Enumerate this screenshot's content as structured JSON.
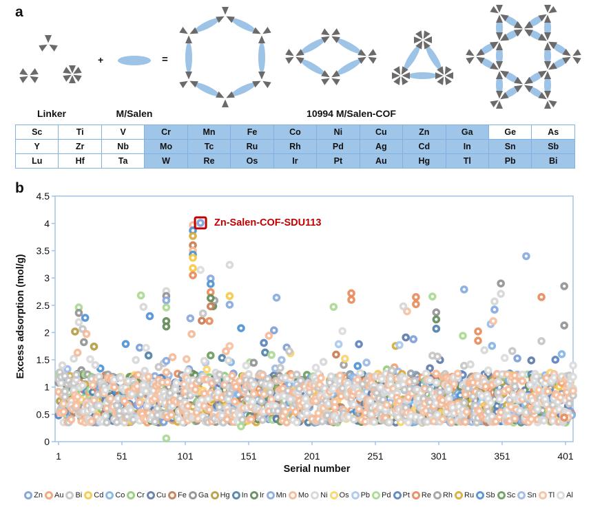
{
  "figure": {
    "panel_a_label": "a",
    "panel_b_label": "b"
  },
  "panel_a": {
    "plus": "+",
    "equals": "=",
    "linker_label": "Linker",
    "msalen_label": "M/Salen",
    "cof_label": "10994 M/Salen-COF",
    "colors": {
      "linker": "#6b6969",
      "salen": "#9dc3e6"
    }
  },
  "element_table": {
    "highlight_color": "#9fc5e8",
    "rows": [
      [
        {
          "el": "Sc",
          "hl": false
        },
        {
          "el": "Ti",
          "hl": false
        },
        {
          "el": "V",
          "hl": false
        },
        {
          "el": "Cr",
          "hl": true
        },
        {
          "el": "Mn",
          "hl": true
        },
        {
          "el": "Fe",
          "hl": true
        },
        {
          "el": "Co",
          "hl": true
        },
        {
          "el": "Ni",
          "hl": true
        },
        {
          "el": "Cu",
          "hl": true
        },
        {
          "el": "Zn",
          "hl": true
        },
        {
          "el": "Ga",
          "hl": true
        },
        {
          "el": "Ge",
          "hl": false
        },
        {
          "el": "As",
          "hl": false
        }
      ],
      [
        {
          "el": "Y",
          "hl": false
        },
        {
          "el": "Zr",
          "hl": false
        },
        {
          "el": "Nb",
          "hl": false
        },
        {
          "el": "Mo",
          "hl": true
        },
        {
          "el": "Tc",
          "hl": true
        },
        {
          "el": "Ru",
          "hl": true
        },
        {
          "el": "Rh",
          "hl": true
        },
        {
          "el": "Pd",
          "hl": true
        },
        {
          "el": "Ag",
          "hl": true
        },
        {
          "el": "Cd",
          "hl": true
        },
        {
          "el": "In",
          "hl": true
        },
        {
          "el": "Sn",
          "hl": true
        },
        {
          "el": "Sb",
          "hl": true
        }
      ],
      [
        {
          "el": "Lu",
          "hl": false
        },
        {
          "el": "Hf",
          "hl": false
        },
        {
          "el": "Ta",
          "hl": false
        },
        {
          "el": "W",
          "hl": true
        },
        {
          "el": "Re",
          "hl": true
        },
        {
          "el": "Os",
          "hl": true
        },
        {
          "el": "Ir",
          "hl": true
        },
        {
          "el": "Pt",
          "hl": true
        },
        {
          "el": "Au",
          "hl": true
        },
        {
          "el": "Hg",
          "hl": true
        },
        {
          "el": "Tl",
          "hl": true
        },
        {
          "el": "Pb",
          "hl": true
        },
        {
          "el": "Bi",
          "hl": true
        }
      ]
    ]
  },
  "chart_data": {
    "type": "scatter",
    "xlabel": "Serial number",
    "ylabel": "Excess adsorption (mol/g)",
    "xlim": [
      1,
      410
    ],
    "ylim": [
      0,
      4.5
    ],
    "xticks": [
      1,
      51,
      101,
      151,
      201,
      251,
      301,
      351,
      401
    ],
    "yticks": [
      0,
      0.5,
      1,
      1.5,
      2,
      2.5,
      3,
      3.5,
      4,
      4.5
    ],
    "ytick_labels": [
      "0",
      "0.5",
      "1",
      "1.5",
      "2",
      "2.5",
      "3",
      "3.5",
      "4",
      "4.5"
    ],
    "grid": false,
    "legend_position": "bottom",
    "axis_color": "#9dc3e6",
    "series": [
      {
        "name": "Zn",
        "color": "#7b9fd9"
      },
      {
        "name": "Au",
        "color": "#f0a070"
      },
      {
        "name": "Bi",
        "color": "#c4c4c4"
      },
      {
        "name": "Cd",
        "color": "#f5c842"
      },
      {
        "name": "Co",
        "color": "#7fb4e6"
      },
      {
        "name": "Cr",
        "color": "#8fcd78"
      },
      {
        "name": "Cu",
        "color": "#5a78a8"
      },
      {
        "name": "Fe",
        "color": "#c57a50"
      },
      {
        "name": "Ga",
        "color": "#909090"
      },
      {
        "name": "Hg",
        "color": "#b49a40"
      },
      {
        "name": "In",
        "color": "#4d7fa8"
      },
      {
        "name": "Ir",
        "color": "#5f8a55"
      },
      {
        "name": "Mn",
        "color": "#86a8e0"
      },
      {
        "name": "Mo",
        "color": "#f4b896"
      },
      {
        "name": "Ni",
        "color": "#d6d6d6"
      },
      {
        "name": "Os",
        "color": "#f9d46a"
      },
      {
        "name": "Pb",
        "color": "#a8c8ee"
      },
      {
        "name": "Pd",
        "color": "#a8d890"
      },
      {
        "name": "Pt",
        "color": "#5a80c0"
      },
      {
        "name": "Re",
        "color": "#e8885a"
      },
      {
        "name": "Rh",
        "color": "#a0a0a0"
      },
      {
        "name": "Ru",
        "color": "#d4aa3a"
      },
      {
        "name": "Sb",
        "color": "#4a90d0"
      },
      {
        "name": "Sc",
        "color": "#6a9a5a"
      },
      {
        "name": "Sn",
        "color": "#9ab8e8"
      },
      {
        "name": "Tl",
        "color": "#f6c0a0"
      },
      {
        "name": "Al",
        "color": "#dadada"
      }
    ],
    "highlight": {
      "serial": 113,
      "value": 4.01,
      "metal": "Zn",
      "label": "Zn-Salen-COF-SDU113",
      "color": "#c00000"
    },
    "outliers": [
      [
        107,
        3.97,
        "Mo"
      ],
      [
        107,
        3.87,
        "Sb"
      ],
      [
        107,
        3.77,
        "Ru"
      ],
      [
        107,
        3.6,
        "Fe"
      ],
      [
        107,
        3.5,
        "Mo"
      ],
      [
        107,
        3.43,
        "Sb"
      ],
      [
        107,
        3.37,
        "Cd"
      ],
      [
        107,
        3.18,
        "Cd"
      ],
      [
        107,
        3.05,
        "Re"
      ],
      [
        121,
        2.99,
        "Mn"
      ],
      [
        121,
        2.89,
        "Sb"
      ],
      [
        121,
        2.74,
        "Re"
      ],
      [
        121,
        2.63,
        "Ir"
      ],
      [
        121,
        2.48,
        "Fe"
      ],
      [
        136,
        3.24,
        "Ni"
      ],
      [
        136,
        2.67,
        "Cd"
      ],
      [
        136,
        2.51,
        "Mn"
      ],
      [
        86,
        2.76,
        "Ni"
      ],
      [
        86,
        2.67,
        "Ga"
      ],
      [
        86,
        2.59,
        "Mn"
      ],
      [
        86,
        2.46,
        "Pd"
      ],
      [
        86,
        2.21,
        "Ir"
      ],
      [
        86,
        2.11,
        "Ir"
      ],
      [
        86,
        1.48,
        "Mn"
      ],
      [
        86,
        0.06,
        "Pd"
      ],
      [
        66,
        2.68,
        "Pd"
      ],
      [
        68,
        2.47,
        "Ni"
      ],
      [
        73,
        2.3,
        "Sb"
      ],
      [
        17,
        2.46,
        "Pd"
      ],
      [
        17,
        2.36,
        "Ga"
      ],
      [
        17,
        2.19,
        "Ni"
      ],
      [
        22,
        2.27,
        "Sb"
      ],
      [
        54,
        1.79,
        "Sb"
      ],
      [
        105,
        2.26,
        "Mn"
      ],
      [
        173,
        2.64,
        "Mn"
      ],
      [
        145,
        2.08,
        "Sb"
      ],
      [
        145,
        0.28,
        "Pd"
      ],
      [
        232,
        2.72,
        "Re"
      ],
      [
        232,
        2.6,
        "Re"
      ],
      [
        218,
        2.47,
        "Pd"
      ],
      [
        370,
        3.4,
        "Mn"
      ],
      [
        350,
        2.9,
        "Ga"
      ],
      [
        350,
        2.71,
        "Ni"
      ],
      [
        400,
        2.85,
        "Ga"
      ],
      [
        382,
        2.65,
        "Re"
      ],
      [
        321,
        2.79,
        "Mn"
      ],
      [
        296,
        2.66,
        "Pd"
      ],
      [
        283,
        2.65,
        "Re"
      ],
      [
        283,
        2.52,
        "Re"
      ],
      [
        299,
        2.37,
        "Ga"
      ],
      [
        299,
        2.24,
        "Ir"
      ],
      [
        299,
        2.07,
        "In"
      ],
      [
        345,
        2.57,
        "Ni"
      ],
      [
        345,
        2.42,
        "Mn"
      ],
      [
        400,
        2.13,
        "Ga"
      ],
      [
        320,
        1.94,
        "Pd"
      ],
      [
        332,
        2.02,
        "Re"
      ],
      [
        332,
        1.85,
        "Re"
      ],
      [
        273,
        2.48,
        "Ni"
      ],
      [
        400,
        0.44,
        "Re"
      ]
    ],
    "bulk": {
      "window": 10,
      "lower": 0.35,
      "upper": [
        1.5,
        2.4,
        2.1,
        1.2,
        1.3,
        1.5,
        2.3,
        1.3,
        1.6,
        1.5,
        2.0,
        3.9,
        2.9,
        2.1,
        1.6,
        1.5,
        2.1,
        2.1,
        1.6,
        1.5,
        1.6,
        1.8,
        2.4,
        1.9,
        1.4,
        1.7,
        1.8,
        2.4,
        1.8,
        1.7,
        1.6,
        1.6,
        1.6,
        2.0,
        2.4,
        1.9,
        1.6,
        2.2,
        1.8,
        1.7,
        1.5
      ]
    }
  }
}
